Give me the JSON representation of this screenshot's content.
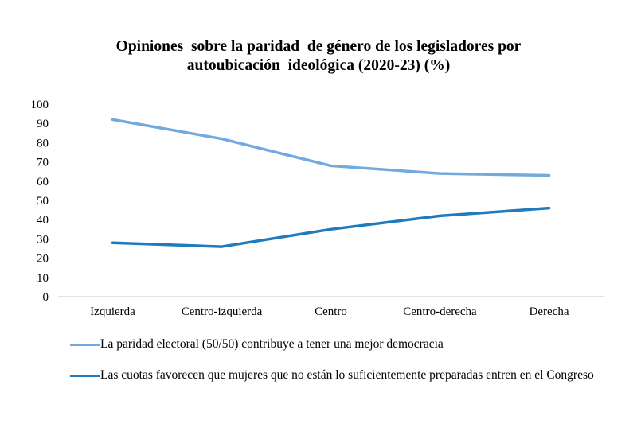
{
  "chart_data": {
    "type": "line",
    "title_lines": [
      "Opiniones  sobre la paridad  de género de los legisladores por",
      "autoubicación  ideológica (2020-23) (%)"
    ],
    "title": "Opiniones sobre la paridad de género de los legisladores por autoubicación ideológica (2020-23) (%)",
    "xlabel": "",
    "ylabel": "",
    "categories": [
      "Izquierda",
      "Centro-izquierda",
      "Centro",
      "Centro-derecha",
      "Derecha"
    ],
    "ylim": [
      0,
      100
    ],
    "yticks": [
      0,
      10,
      20,
      30,
      40,
      50,
      60,
      70,
      80,
      90,
      100
    ],
    "grid": false,
    "legend_position": "bottom",
    "series": [
      {
        "name": "La paridad electoral (50/50) contribuye a tener una mejor democracia",
        "color": "#72aadf",
        "values": [
          92,
          82,
          68,
          64,
          63
        ]
      },
      {
        "name": "Las cuotas favorecen que mujeres que no están lo suficientemente preparadas entren en el Congreso",
        "color": "#1f7bbd",
        "values": [
          28,
          26,
          35,
          42,
          46
        ]
      }
    ]
  }
}
